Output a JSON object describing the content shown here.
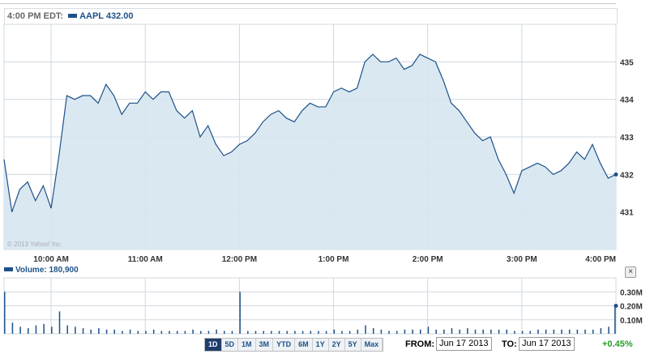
{
  "header": {
    "time": "4:00 PM EDT:",
    "symbol_label": "AAPL 432.00"
  },
  "watermark": "© 2013 Yahoo! Inc.",
  "volume_label": "Volume: 180,900",
  "close_label": "×",
  "ranges": [
    "1D",
    "5D",
    "1M",
    "3M",
    "YTD",
    "6M",
    "1Y",
    "2Y",
    "5Y",
    "Max"
  ],
  "active_range": "1D",
  "from_label": "FROM:",
  "from_value": "Jun 17 2013",
  "to_label": "TO:",
  "to_value": "Jun 17 2013",
  "change": "+0.45%",
  "colors": {
    "line": "#1d5189",
    "fill": "#d6e5f0",
    "grid": "#cfd8e0",
    "change": "#2a9d2a"
  },
  "chart_data": [
    {
      "type": "area",
      "series": [
        {
          "name": "AAPL",
          "values": [
            432.4,
            431.0,
            431.6,
            431.8,
            431.3,
            431.7,
            431.1,
            432.5,
            434.1,
            434.0,
            434.1,
            434.1,
            433.9,
            434.4,
            434.1,
            433.6,
            433.9,
            433.9,
            434.2,
            434.0,
            434.2,
            434.2,
            433.7,
            433.5,
            433.7,
            433.0,
            433.3,
            432.8,
            432.5,
            432.6,
            432.8,
            432.9,
            433.1,
            433.4,
            433.6,
            433.7,
            433.5,
            433.4,
            433.7,
            433.9,
            433.8,
            433.8,
            434.2,
            434.3,
            434.2,
            434.3,
            435.0,
            435.2,
            435.0,
            435.0,
            435.1,
            434.8,
            434.9,
            435.2,
            435.1,
            435.0,
            434.5,
            433.9,
            433.7,
            433.4,
            433.1,
            432.9,
            433.0,
            432.4,
            432.0,
            431.5,
            432.1,
            432.2,
            432.3,
            432.2,
            432.0,
            432.1,
            432.3,
            432.6,
            432.4,
            432.8,
            432.3,
            431.9,
            432.0
          ]
        }
      ],
      "x_start": "9:30 AM",
      "x_interval_minutes": 5,
      "x_ticks": [
        "10:00 AM",
        "11:00 AM",
        "12:00 PM",
        "1:00 PM",
        "2:00 PM",
        "3:00 PM",
        "4:00 PM"
      ],
      "y_ticks": [
        "431",
        "432",
        "433",
        "434",
        "435"
      ],
      "ylim": [
        430,
        436
      ],
      "grid": true
    },
    {
      "type": "bar",
      "series": [
        {
          "name": "Volume",
          "values": [
            0.3,
            0.08,
            0.05,
            0.04,
            0.06,
            0.07,
            0.05,
            0.16,
            0.06,
            0.05,
            0.04,
            0.03,
            0.04,
            0.03,
            0.03,
            0.02,
            0.03,
            0.02,
            0.02,
            0.03,
            0.02,
            0.02,
            0.02,
            0.02,
            0.03,
            0.02,
            0.02,
            0.03,
            0.02,
            0.02,
            0.3,
            0.02,
            0.02,
            0.02,
            0.02,
            0.02,
            0.02,
            0.02,
            0.02,
            0.02,
            0.02,
            0.02,
            0.03,
            0.02,
            0.02,
            0.03,
            0.06,
            0.04,
            0.03,
            0.02,
            0.02,
            0.03,
            0.03,
            0.03,
            0.05,
            0.03,
            0.03,
            0.04,
            0.03,
            0.04,
            0.03,
            0.03,
            0.03,
            0.03,
            0.03,
            0.02,
            0.02,
            0.02,
            0.03,
            0.03,
            0.03,
            0.03,
            0.03,
            0.03,
            0.03,
            0.03,
            0.04,
            0.05,
            0.2
          ]
        }
      ],
      "y_ticks": [
        "0.10M",
        "0.20M",
        "0.30M"
      ],
      "ylim": [
        0,
        0.4
      ]
    }
  ]
}
